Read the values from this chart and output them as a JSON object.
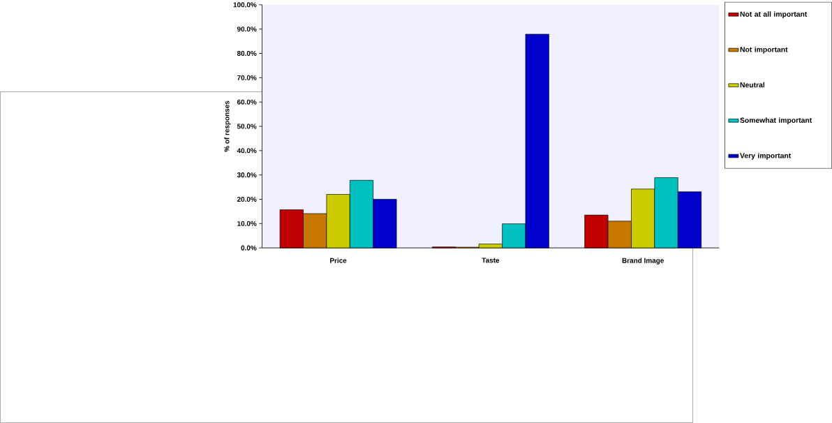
{
  "chart_data": {
    "type": "bar",
    "ylabel": "% of responses",
    "categories": [
      "Price",
      "Taste",
      "Brand Image"
    ],
    "series": [
      {
        "name": "Not at all important",
        "color": "#c00000",
        "values": [
          15.7,
          0.4,
          13.5
        ]
      },
      {
        "name": "Not important",
        "color": "#c87800",
        "values": [
          14.1,
          0.3,
          11.0
        ]
      },
      {
        "name": "Neutral",
        "color": "#cccc00",
        "values": [
          22.0,
          1.6,
          24.2
        ]
      },
      {
        "name": "Somewhat important",
        "color": "#00c0c0",
        "values": [
          27.8,
          9.9,
          28.9
        ]
      },
      {
        "name": "Very important",
        "color": "#0000cc",
        "values": [
          20.0,
          87.9,
          23.1
        ]
      }
    ],
    "ylim": [
      0,
      100
    ],
    "yticks": [
      {
        "value": 0,
        "label": "0.0%"
      },
      {
        "value": 10,
        "label": "10.0%"
      },
      {
        "value": 20,
        "label": "20.0%"
      },
      {
        "value": 30,
        "label": "30.0%"
      },
      {
        "value": 40,
        "label": "40.0%"
      },
      {
        "value": 50,
        "label": "50.0%"
      },
      {
        "value": 60,
        "label": "60.0%"
      },
      {
        "value": 70,
        "label": "70.0%"
      },
      {
        "value": 80,
        "label": "80.0%"
      },
      {
        "value": 90,
        "label": "90.0%"
      },
      {
        "value": 100,
        "label": "100.0%"
      }
    ],
    "legend": "right"
  }
}
